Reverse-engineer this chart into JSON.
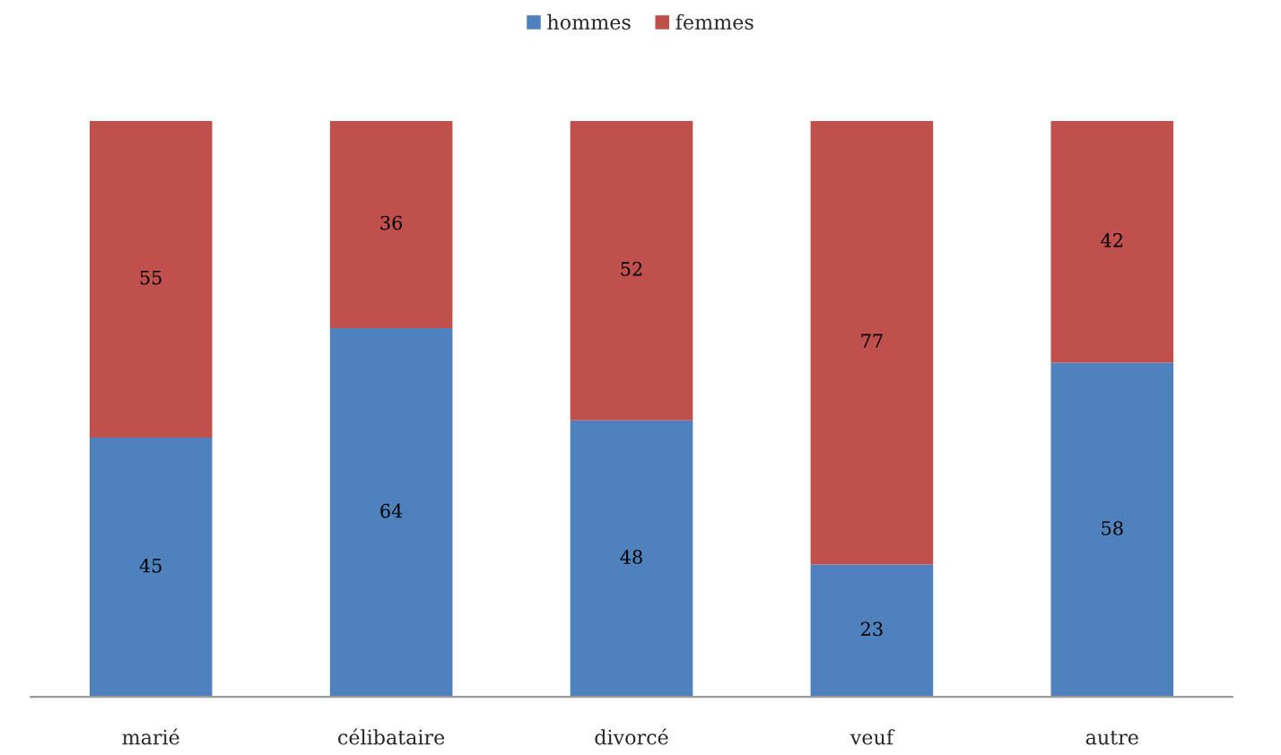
{
  "chart_data": {
    "type": "bar",
    "stacked": true,
    "data_labels": true,
    "legend": "top",
    "tick_labels": "x",
    "categories": [
      "marié",
      "célibataire",
      "divorcé",
      "veuf",
      "autre"
    ],
    "series": [
      {
        "name": "hommes",
        "color": "#4f81bd",
        "values": [
          45,
          64,
          48,
          23,
          58
        ]
      },
      {
        "name": "femmes",
        "color": "#c0504d",
        "values": [
          55,
          36,
          52,
          77,
          42
        ]
      }
    ]
  }
}
